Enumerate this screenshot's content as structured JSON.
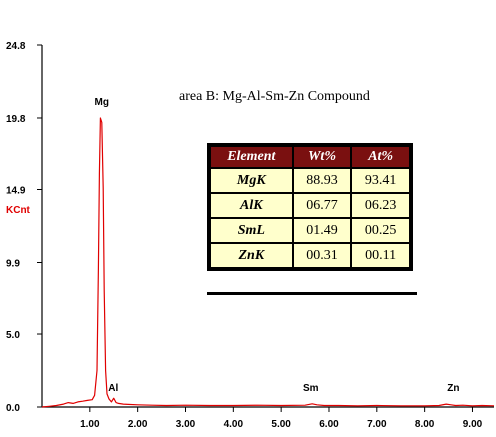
{
  "chart_data": {
    "type": "line",
    "title": "",
    "xlabel": "",
    "ylabel": "KCnt",
    "xlim": [
      0.0,
      9.45
    ],
    "ylim": [
      0.0,
      24.8
    ],
    "x_ticks": [
      "1.00",
      "2.00",
      "3.00",
      "4.00",
      "5.00",
      "6.00",
      "7.00",
      "8.00",
      "9.00"
    ],
    "x_tick_values": [
      1,
      2,
      3,
      4,
      5,
      6,
      7,
      8,
      9
    ],
    "y_ticks": [
      "0.0",
      "5.0",
      "9.9",
      "14.9",
      "19.8",
      "24.8"
    ],
    "y_tick_values": [
      0.0,
      5.0,
      9.9,
      14.9,
      19.8,
      24.8
    ],
    "series": [
      {
        "color": "#e00000",
        "x": [
          0.0,
          0.15,
          0.3,
          0.45,
          0.55,
          0.65,
          0.75,
          0.85,
          0.95,
          1.05,
          1.1,
          1.15,
          1.18,
          1.2,
          1.22,
          1.25,
          1.28,
          1.3,
          1.33,
          1.36,
          1.4,
          1.45,
          1.5,
          1.55,
          1.6,
          1.7,
          1.8,
          2.0,
          2.3,
          2.6,
          3.0,
          3.5,
          4.0,
          4.5,
          5.0,
          5.5,
          5.65,
          5.75,
          5.9,
          6.2,
          6.6,
          7.0,
          7.5,
          8.0,
          8.3,
          8.45,
          8.55,
          8.65,
          8.8,
          9.0,
          9.2,
          9.45
        ],
        "y": [
          0.0,
          0.05,
          0.1,
          0.2,
          0.3,
          0.25,
          0.35,
          0.4,
          0.45,
          0.5,
          0.8,
          2.5,
          9.5,
          16.0,
          19.8,
          19.5,
          15.0,
          8.0,
          2.5,
          0.9,
          0.55,
          0.35,
          0.6,
          0.3,
          0.25,
          0.2,
          0.18,
          0.15,
          0.12,
          0.1,
          0.12,
          0.1,
          0.1,
          0.12,
          0.1,
          0.12,
          0.22,
          0.15,
          0.1,
          0.1,
          0.08,
          0.1,
          0.08,
          0.08,
          0.1,
          0.2,
          0.15,
          0.1,
          0.12,
          0.08,
          0.1,
          0.08
        ]
      }
    ],
    "peak_labels": [
      {
        "text": "Mg",
        "x": 1.25,
        "y": 20.5
      },
      {
        "text": "Al",
        "x": 1.49,
        "y": 0.9
      },
      {
        "text": "Sm",
        "x": 5.62,
        "y": 0.9
      },
      {
        "text": "Zn",
        "x": 8.6,
        "y": 0.9
      }
    ],
    "grid": false,
    "legend": "none"
  },
  "caption": "area  B: Mg-Al-Sm-Zn Compound",
  "table": {
    "headers": [
      "Element",
      "Wt%",
      "At%"
    ],
    "rows": [
      {
        "element": "MgK",
        "wt": "88.93",
        "at": "93.41"
      },
      {
        "element": "AlK",
        "wt": "06.77",
        "at": "06.23"
      },
      {
        "element": "SmL",
        "wt": "01.49",
        "at": "00.25"
      },
      {
        "element": "ZnK",
        "wt": "00.31",
        "at": "00.11"
      }
    ]
  }
}
